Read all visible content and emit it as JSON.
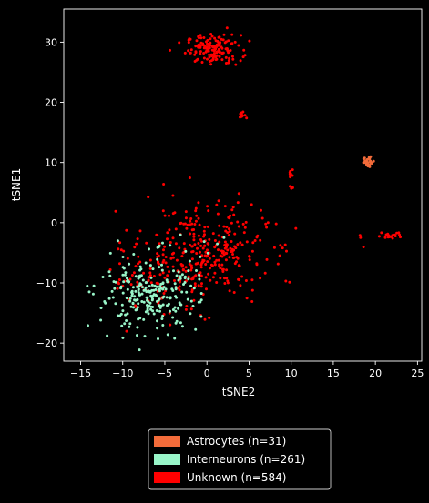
{
  "chart_data": {
    "type": "scatter",
    "xlabel": "tSNE2",
    "ylabel": "tSNE1",
    "xlim": [
      -17,
      25.5
    ],
    "ylim": [
      -23,
      35.5
    ],
    "x_ticks": [
      -15,
      -10,
      -5,
      0,
      5,
      10,
      15,
      20,
      25
    ],
    "y_ticks": [
      -20,
      -10,
      0,
      10,
      20,
      30
    ],
    "grid": false,
    "legend_position": "bottom-center, below plot",
    "series": [
      {
        "name": "Astrocytes (n=31)",
        "color": "#f26b3a",
        "clusters": [
          {
            "cx": 19.2,
            "cy": 10.2,
            "sx": 0.35,
            "sy": 0.45,
            "n": 31
          }
        ]
      },
      {
        "name": "Interneurons (n=261)",
        "color": "#98f5c8",
        "clusters": [
          {
            "cx": -7.0,
            "cy": -12.5,
            "sx": 3.0,
            "sy": 2.6,
            "n": 241
          },
          {
            "cx": -3.0,
            "cy": -6.0,
            "sx": 4.0,
            "sy": 3.5,
            "n": 20
          }
        ]
      },
      {
        "name": "Unknown (n=584)",
        "color": "#ff0000",
        "clusters": [
          {
            "cx": 0.8,
            "cy": 28.8,
            "sx": 1.6,
            "sy": 1.2,
            "n": 150
          },
          {
            "cx": 4.2,
            "cy": 17.8,
            "sx": 0.35,
            "sy": 0.35,
            "n": 12
          },
          {
            "cx": 10.0,
            "cy": 8.2,
            "sx": 0.12,
            "sy": 0.3,
            "n": 8
          },
          {
            "cx": 10.0,
            "cy": 5.8,
            "sx": 0.12,
            "sy": 0.2,
            "n": 4
          },
          {
            "cx": 22.0,
            "cy": -2.0,
            "sx": 0.9,
            "sy": 0.3,
            "n": 20
          },
          {
            "cx": 18.5,
            "cy": -1.5,
            "sx": 0.2,
            "sy": 1.8,
            "n": 3
          },
          {
            "cx": -0.5,
            "cy": -5.0,
            "sx": 3.8,
            "sy": 4.2,
            "n": 330
          },
          {
            "cx": -6.0,
            "cy": -9.0,
            "sx": 3.0,
            "sy": 3.0,
            "n": 57
          }
        ]
      }
    ]
  }
}
